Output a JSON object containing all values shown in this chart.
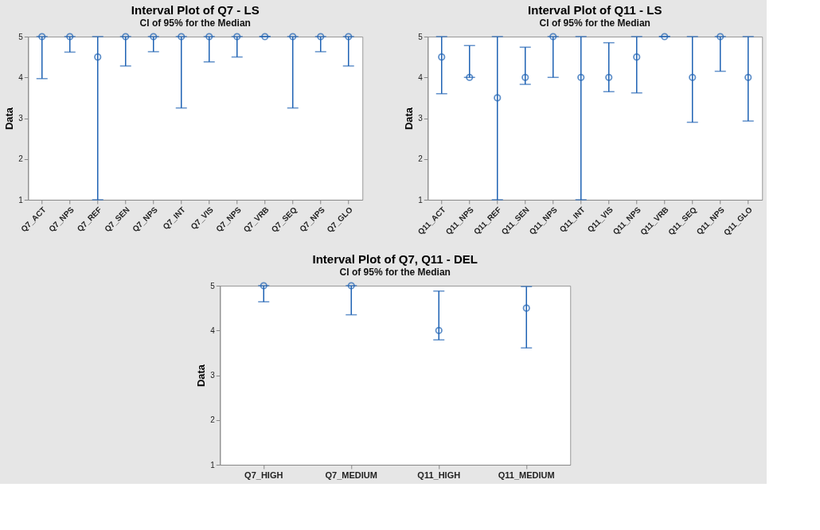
{
  "chart_data": [
    {
      "type": "scatter",
      "title": "Interval Plot of Q7 - LS",
      "subtitle": "CI of 95% for the Median",
      "ylabel": "Data",
      "categories": [
        "Q7_ACT",
        "Q7_NPS",
        "Q7_REF",
        "Q7_SEN",
        "Q7_NPS",
        "Q7_INT",
        "Q7_VIS",
        "Q7_NPS",
        "Q7_VRB",
        "Q7_SEQ",
        "Q7_NPS",
        "Q7_GLO"
      ],
      "series": [
        {
          "color": "#1f63b4",
          "values": [
            5,
            5,
            4.5,
            5,
            5,
            5,
            5,
            5,
            5,
            5,
            5,
            5
          ],
          "errors": [
            [
              3.97,
              5
            ],
            [
              4.62,
              5
            ],
            [
              1,
              5
            ],
            [
              4.28,
              5
            ],
            [
              4.63,
              5
            ],
            [
              3.25,
              5
            ],
            [
              4.38,
              5
            ],
            [
              4.5,
              5
            ],
            [
              5,
              5
            ],
            [
              3.25,
              5
            ],
            [
              4.63,
              5
            ],
            [
              4.28,
              5
            ]
          ]
        }
      ],
      "ylim": [
        1,
        5
      ],
      "yticks": [
        1,
        2,
        3,
        4,
        5
      ],
      "grid": false,
      "marker": "circle"
    },
    {
      "type": "scatter",
      "title": "Interval Plot of Q11 - LS",
      "subtitle": "CI of 95% for the Median",
      "ylabel": "Data",
      "categories": [
        "Q11_ACT",
        "Q11_NPS",
        "Q11_REF",
        "Q11_SEN",
        "Q11_NPS",
        "Q11_INT",
        "Q11_VIS",
        "Q11_NPS",
        "Q11_VRB",
        "Q11_SEQ",
        "Q11_NPS",
        "Q11_GLO"
      ],
      "series": [
        {
          "color": "#1f63b4",
          "values": [
            4.5,
            4,
            3.5,
            4,
            5,
            4,
            4,
            4.5,
            5,
            4,
            5,
            4
          ],
          "errors": [
            [
              3.6,
              5
            ],
            [
              4,
              4.78
            ],
            [
              1,
              5
            ],
            [
              3.83,
              4.74
            ],
            [
              4,
              5
            ],
            [
              1,
              5
            ],
            [
              3.65,
              4.85
            ],
            [
              3.62,
              5
            ],
            [
              5,
              5
            ],
            [
              2.9,
              5
            ],
            [
              4.15,
              5
            ],
            [
              2.93,
              5
            ]
          ]
        }
      ],
      "ylim": [
        1,
        5
      ],
      "yticks": [
        1,
        2,
        3,
        4,
        5
      ],
      "grid": false,
      "marker": "circle"
    },
    {
      "type": "scatter",
      "title": "Interval Plot of Q7, Q11 - DEL",
      "subtitle": "CI of 95% for the Median",
      "ylabel": "Data",
      "categories": [
        "Q7_HIGH",
        "Q7_MEDIUM",
        "Q11_HIGH",
        "Q11_MEDIUM"
      ],
      "series": [
        {
          "color": "#1f63b4",
          "values": [
            5,
            5,
            4,
            4.5
          ],
          "errors": [
            [
              4.64,
              5
            ],
            [
              4.35,
              5
            ],
            [
              3.79,
              4.88
            ],
            [
              3.61,
              4.98
            ]
          ]
        }
      ],
      "ylim": [
        1,
        5
      ],
      "yticks": [
        1,
        2,
        3,
        4,
        5
      ],
      "grid": false,
      "marker": "circle"
    }
  ]
}
